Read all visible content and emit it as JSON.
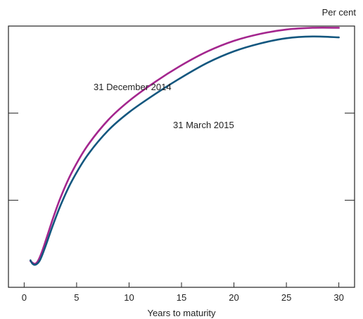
{
  "chart_data": {
    "type": "line",
    "title": "",
    "xlabel": "Years to maturity",
    "ylabel": "Per cent",
    "xlim": [
      -1.5,
      31.5
    ],
    "ylim": [
      0,
      3
    ],
    "xticks": [
      "0",
      "5",
      "10",
      "15",
      "20",
      "25",
      "30"
    ],
    "xtick_values": [
      0,
      5,
      10,
      15,
      20,
      25,
      30
    ],
    "ytick_values": [
      1,
      2
    ],
    "grid": false,
    "legend": "none",
    "series": [
      {
        "name": "31 December 2014",
        "color": "#A4268E",
        "x": [
          0.6,
          1.0,
          1.3,
          1.7,
          2.2,
          2.8,
          3.5,
          4.5,
          6,
          8,
          10,
          12.5,
          15,
          17.5,
          20,
          22.5,
          25,
          27.5,
          30
        ],
        "y": [
          0.3,
          0.27,
          0.3,
          0.41,
          0.59,
          0.81,
          1.04,
          1.31,
          1.62,
          1.92,
          2.14,
          2.36,
          2.55,
          2.71,
          2.83,
          2.91,
          2.96,
          2.98,
          2.98
        ]
      },
      {
        "name": "31 March 2015",
        "color": "#13577F",
        "x": [
          0.6,
          0.8,
          1.1,
          1.5,
          2.0,
          2.7,
          3.5,
          4.5,
          6,
          8,
          10,
          12.5,
          15,
          17.5,
          20,
          22.5,
          25,
          27.5,
          30
        ],
        "y": [
          0.31,
          0.27,
          0.26,
          0.31,
          0.46,
          0.7,
          0.95,
          1.21,
          1.51,
          1.8,
          2.01,
          2.22,
          2.41,
          2.58,
          2.71,
          2.8,
          2.86,
          2.88,
          2.87
        ]
      }
    ]
  }
}
